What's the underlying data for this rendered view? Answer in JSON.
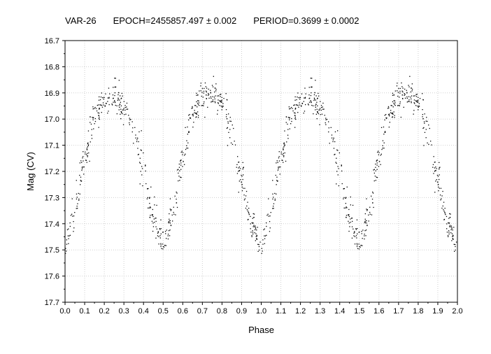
{
  "header": {
    "star": "VAR-26",
    "epoch": "EPOCH=2455857.497 ± 0.002",
    "period": "PERIOD=0.3699 ± 0.0002"
  },
  "chart_data": {
    "type": "scatter",
    "title": "",
    "xlabel": "Phase",
    "ylabel": "Mag (CV)",
    "xlim": [
      0.0,
      2.0
    ],
    "ylim": [
      16.7,
      17.7
    ],
    "y_inverted": true,
    "grid": true,
    "marker_color": "#000000",
    "x_ticks": [
      "0.0",
      "0.1",
      "0.2",
      "0.3",
      "0.4",
      "0.5",
      "0.6",
      "0.7",
      "0.8",
      "0.9",
      "1.0",
      "1.1",
      "1.2",
      "1.3",
      "1.4",
      "1.5",
      "1.6",
      "1.7",
      "1.8",
      "1.9",
      "2.0"
    ],
    "y_ticks": [
      "16.7",
      "16.8",
      "16.9",
      "17.0",
      "17.1",
      "17.2",
      "17.3",
      "17.4",
      "17.5",
      "17.6",
      "17.7"
    ],
    "light_curve_shape": {
      "description_points_phase": [
        0.0,
        0.05,
        0.1,
        0.15,
        0.2,
        0.25,
        0.3,
        0.35,
        0.4,
        0.45,
        0.5,
        0.55,
        0.6,
        0.65,
        0.7,
        0.75,
        0.8,
        0.85,
        0.9,
        0.95,
        1.0
      ],
      "mag": [
        17.48,
        17.35,
        17.15,
        17.0,
        16.93,
        16.91,
        16.95,
        17.05,
        17.2,
        17.38,
        17.47,
        17.35,
        17.15,
        16.99,
        16.91,
        16.89,
        16.93,
        17.05,
        17.22,
        17.4,
        17.48
      ],
      "scatter_sigma": 0.03,
      "points_per_cycle": 620
    }
  }
}
